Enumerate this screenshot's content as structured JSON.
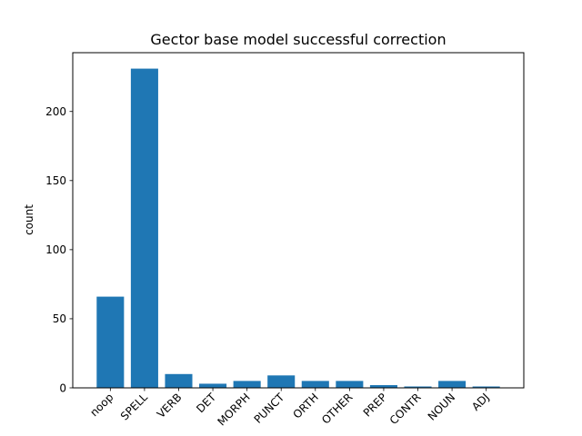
{
  "chart_data": {
    "type": "bar",
    "title": "Gector base model successful correction",
    "xlabel": "",
    "ylabel": "count",
    "categories": [
      "noop",
      "SPELL",
      "VERB",
      "DET",
      "MORPH",
      "PUNCT",
      "ORTH",
      "OTHER",
      "PREP",
      "CONTR",
      "NOUN",
      "ADJ"
    ],
    "values": [
      66,
      231,
      10,
      3,
      5,
      9,
      5,
      5,
      2,
      1,
      5,
      1
    ],
    "ylim": [
      0,
      242.55
    ],
    "yticks": [
      0,
      50,
      100,
      150,
      200
    ],
    "x_tick_rotation_deg": 45,
    "grid": false,
    "legend": "none",
    "colors": {
      "bar": "#1f77b4",
      "axes": "#000000",
      "background": "#ffffff"
    }
  }
}
